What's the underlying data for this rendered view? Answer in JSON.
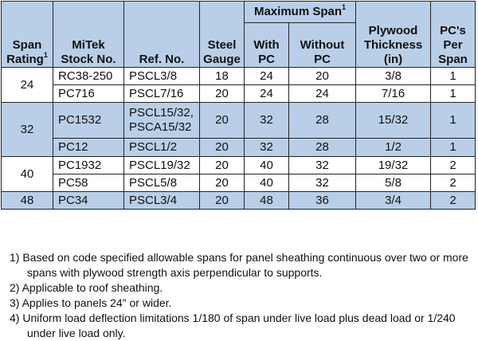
{
  "header": {
    "span_rating": [
      "Span",
      "Rating"
    ],
    "span_rating_sup": "1",
    "stock_no": [
      "MiTek",
      "Stock No."
    ],
    "ref_no": "Ref. No.",
    "steel_gauge": [
      "Steel",
      "Gauge"
    ],
    "max_span": "Maximum Span",
    "max_span_sup": "1",
    "with_pc": [
      "With",
      "PC"
    ],
    "without_pc": [
      "Without",
      "PC"
    ],
    "plywood": [
      "Plywood",
      "Thickness",
      "(in)"
    ],
    "pcs_per_span": [
      "PC's",
      "Per",
      "Span"
    ]
  },
  "rows": [
    {
      "stock": "RC38-250",
      "ref": "PSCL3/8",
      "gauge": "18",
      "with_pc": "24",
      "without_pc": "20",
      "thickness": "3/8",
      "per_span": "1"
    },
    {
      "stock": "PC716",
      "ref": "PSCL7/16",
      "gauge": "20",
      "with_pc": "24",
      "without_pc": "24",
      "thickness": "7/16",
      "per_span": "1"
    },
    {
      "stock": "PC1532",
      "ref": "PSCL15/32,",
      "ref2": "PSCA15/32",
      "gauge": "20",
      "with_pc": "32",
      "without_pc": "28",
      "thickness": "15/32",
      "per_span": "1"
    },
    {
      "stock": "PC12",
      "ref": "PSCL1/2",
      "gauge": "20",
      "with_pc": "32",
      "without_pc": "28",
      "thickness": "1/2",
      "per_span": "1"
    },
    {
      "stock": "PC1932",
      "ref": "PSCL19/32",
      "gauge": "20",
      "with_pc": "40",
      "without_pc": "32",
      "thickness": "19/32",
      "per_span": "2"
    },
    {
      "stock": "PC58",
      "ref": "PSCL5/8",
      "gauge": "20",
      "with_pc": "40",
      "without_pc": "32",
      "thickness": "5/8",
      "per_span": "2"
    },
    {
      "stock": "PC34",
      "ref": "PSCL3/4",
      "gauge": "20",
      "with_pc": "48",
      "without_pc": "36",
      "thickness": "3/4",
      "per_span": "2"
    }
  ],
  "span_groups": [
    "24",
    "32",
    "40",
    "48"
  ],
  "notes": [
    "1) Based on code specified allowable spans for panel sheathing continuous over two or more spans with plywood strength axis perpendicular to supports.",
    "2) Applicable to roof sheathing.",
    "3) Applies to panels 24\" or wider.",
    "4) Uniform load deflection limitations 1/180 of span under live load plus dead load or 1/240 under live load only."
  ],
  "colors": {
    "header_fill": "#b9cfe8",
    "row_fill": "#b9cfe8",
    "border": "#222222"
  }
}
